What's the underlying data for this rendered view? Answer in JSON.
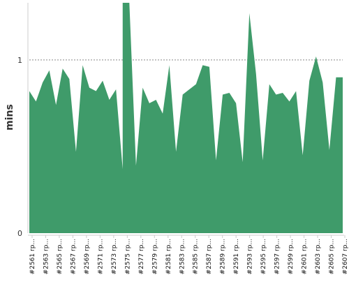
{
  "chart_data": {
    "type": "area",
    "ylabel": "mins",
    "xlabel": "",
    "ylim": [
      0,
      1.33
    ],
    "yticks": [
      {
        "value": 0,
        "label": "0"
      },
      {
        "value": 1,
        "label": "1"
      }
    ],
    "grid": "horizontal-dashed-at-1",
    "colors": {
      "area": "#3f9b6a",
      "grid": "#888888",
      "axis": "#cccccc"
    },
    "xtick_labels": [
      "#2561 rp...",
      "#2563 rp...",
      "#2565 rp...",
      "#2567 rp...",
      "#2569 rp...",
      "#2571 rp...",
      "#2573 rp...",
      "#2575 rp...",
      "#2577 rp...",
      "#2579 rp...",
      "#2581 rp...",
      "#2583 rp...",
      "#2585 rp...",
      "#2587 rp...",
      "#2589 rp...",
      "#2591 rp...",
      "#2593 rp...",
      "#2595 rp...",
      "#2597 rp...",
      "#2599 rp...",
      "#2601 rp...",
      "#2603 rp...",
      "#2605 rp...",
      "#2607 rp..."
    ],
    "series": [
      {
        "x": [
          "2561",
          "2562",
          "2563",
          "2564",
          "2565",
          "2566",
          "2567",
          "2568",
          "2569",
          "2570",
          "2571",
          "2572",
          "2573",
          "2574",
          "2575",
          "2575",
          "2576",
          "2577",
          "2578",
          "2579",
          "2580",
          "2581",
          "2582",
          "2583",
          "2584",
          "2585",
          "2586",
          "2587",
          "2588",
          "2589",
          "2590",
          "2591",
          "2592",
          "2593",
          "2594",
          "2595",
          "2596",
          "2597",
          "2598",
          "2599",
          "2600",
          "2601",
          "2602",
          "2603",
          "2604",
          "2605",
          "2606",
          "2607",
          "2608"
        ],
        "values": [
          0.82,
          0.76,
          0.87,
          0.94,
          0.74,
          0.95,
          0.89,
          0.47,
          0.97,
          0.84,
          0.82,
          0.88,
          0.77,
          0.83,
          0.37,
          1.33,
          1.33,
          0.39,
          0.84,
          0.75,
          0.77,
          0.69,
          0.97,
          0.47,
          0.8,
          0.83,
          0.86,
          0.97,
          0.96,
          0.42,
          0.8,
          0.81,
          0.75,
          0.41,
          1.27,
          0.92,
          0.42,
          0.86,
          0.8,
          0.81,
          0.76,
          0.82,
          0.45,
          0.88,
          1.02,
          0.87,
          0.48,
          0.9,
          0.9
        ]
      }
    ]
  }
}
